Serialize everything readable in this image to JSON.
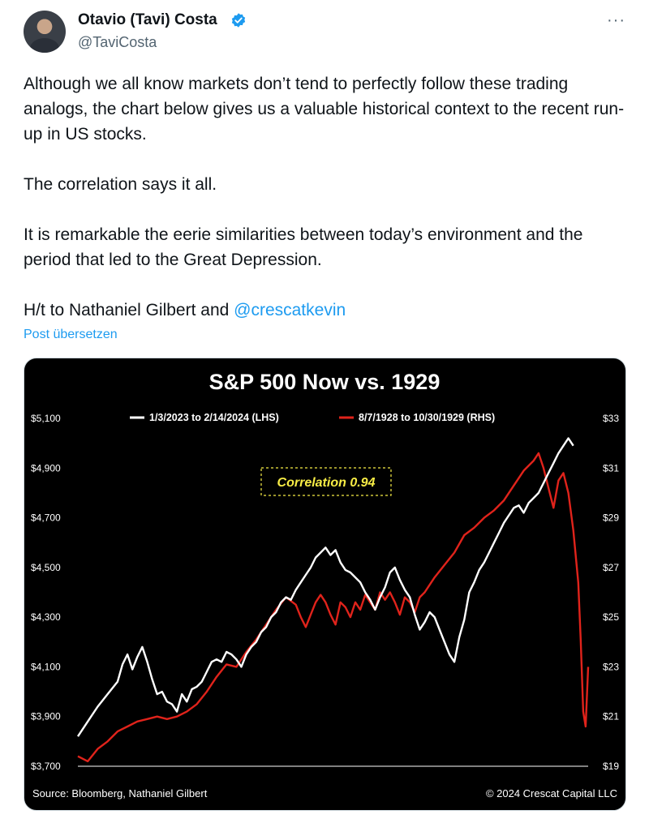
{
  "post": {
    "author_name": "Otavio (Tavi) Costa",
    "handle": "@TaviCosta",
    "more_icon": "more-icon",
    "verified_color": "#1d9bf0",
    "paragraphs": [
      "Although we all know markets don’t tend to perfectly follow these trading analogs, the chart below gives us a valuable historical context to the recent run-up in US stocks.",
      "The correlation says it all.",
      "It is remarkable the eerie similarities between today’s environment and the period that led to the Great Depression."
    ],
    "ht_prefix": "H/t to Nathaniel Gilbert and ",
    "ht_link": "@crescatkevin",
    "translate_label": "Post übersetzen"
  },
  "chart_data": {
    "type": "line",
    "title": "S&P 500 Now vs. 1929",
    "annotation": "Correlation 0.94",
    "source": "Source: Bloomberg, Nathaniel Gilbert",
    "copyright": "© 2024 Crescat Capital LLC",
    "left_axis": {
      "ticks": [
        "$5,100",
        "$4,900",
        "$4,700",
        "$4,500",
        "$4,300",
        "$4,100",
        "$3,900",
        "$3,700"
      ],
      "range": [
        3700,
        5100
      ]
    },
    "right_axis": {
      "ticks": [
        "$33",
        "$31",
        "$29",
        "$27",
        "$25",
        "$23",
        "$21",
        "$19"
      ],
      "range": [
        19,
        33
      ]
    },
    "legend_position": "top",
    "series": [
      {
        "name": "1/3/2023 to 2/14/2024 (LHS)",
        "color": "#ffffff",
        "axis": "left",
        "points": [
          [
            0,
            3820
          ],
          [
            2,
            3880
          ],
          [
            4,
            3940
          ],
          [
            6,
            3990
          ],
          [
            8,
            4040
          ],
          [
            9,
            4110
          ],
          [
            10,
            4150
          ],
          [
            11,
            4090
          ],
          [
            12,
            4140
          ],
          [
            13,
            4180
          ],
          [
            14,
            4120
          ],
          [
            15,
            4050
          ],
          [
            16,
            3990
          ],
          [
            17,
            4000
          ],
          [
            18,
            3960
          ],
          [
            19,
            3950
          ],
          [
            20,
            3920
          ],
          [
            21,
            3990
          ],
          [
            22,
            3960
          ],
          [
            23,
            4010
          ],
          [
            24,
            4020
          ],
          [
            25,
            4040
          ],
          [
            26,
            4080
          ],
          [
            27,
            4120
          ],
          [
            28,
            4130
          ],
          [
            29,
            4120
          ],
          [
            30,
            4160
          ],
          [
            31,
            4150
          ],
          [
            32,
            4130
          ],
          [
            33,
            4100
          ],
          [
            34,
            4150
          ],
          [
            35,
            4180
          ],
          [
            36,
            4200
          ],
          [
            37,
            4240
          ],
          [
            38,
            4260
          ],
          [
            39,
            4300
          ],
          [
            40,
            4320
          ],
          [
            41,
            4360
          ],
          [
            42,
            4380
          ],
          [
            43,
            4370
          ],
          [
            44,
            4410
          ],
          [
            45,
            4440
          ],
          [
            46,
            4470
          ],
          [
            47,
            4500
          ],
          [
            48,
            4540
          ],
          [
            49,
            4560
          ],
          [
            50,
            4580
          ],
          [
            51,
            4550
          ],
          [
            52,
            4570
          ],
          [
            53,
            4520
          ],
          [
            54,
            4490
          ],
          [
            55,
            4480
          ],
          [
            56,
            4460
          ],
          [
            57,
            4440
          ],
          [
            58,
            4400
          ],
          [
            59,
            4370
          ],
          [
            60,
            4330
          ],
          [
            61,
            4380
          ],
          [
            62,
            4420
          ],
          [
            63,
            4480
          ],
          [
            64,
            4500
          ],
          [
            65,
            4450
          ],
          [
            66,
            4410
          ],
          [
            67,
            4380
          ],
          [
            68,
            4310
          ],
          [
            69,
            4250
          ],
          [
            70,
            4280
          ],
          [
            71,
            4320
          ],
          [
            72,
            4300
          ],
          [
            73,
            4250
          ],
          [
            74,
            4200
          ],
          [
            75,
            4150
          ],
          [
            76,
            4120
          ],
          [
            77,
            4220
          ],
          [
            78,
            4290
          ],
          [
            79,
            4400
          ],
          [
            80,
            4440
          ],
          [
            81,
            4490
          ],
          [
            82,
            4520
          ],
          [
            83,
            4560
          ],
          [
            84,
            4600
          ],
          [
            85,
            4640
          ],
          [
            86,
            4680
          ],
          [
            87,
            4710
          ],
          [
            88,
            4740
          ],
          [
            89,
            4750
          ],
          [
            90,
            4720
          ],
          [
            91,
            4760
          ],
          [
            92,
            4780
          ],
          [
            93,
            4800
          ],
          [
            94,
            4840
          ],
          [
            95,
            4880
          ],
          [
            96,
            4920
          ],
          [
            97,
            4960
          ],
          [
            98,
            4990
          ],
          [
            99,
            5020
          ],
          [
            100,
            4990
          ]
        ]
      },
      {
        "name": "8/7/1928 to 10/30/1929 (RHS)",
        "color": "#e0231b",
        "axis": "right",
        "points": [
          [
            0,
            19.4
          ],
          [
            2,
            19.2
          ],
          [
            4,
            19.7
          ],
          [
            6,
            20.0
          ],
          [
            8,
            20.4
          ],
          [
            10,
            20.6
          ],
          [
            12,
            20.8
          ],
          [
            14,
            20.9
          ],
          [
            16,
            21.0
          ],
          [
            18,
            20.9
          ],
          [
            20,
            21.0
          ],
          [
            22,
            21.2
          ],
          [
            24,
            21.5
          ],
          [
            26,
            22.0
          ],
          [
            28,
            22.6
          ],
          [
            30,
            23.1
          ],
          [
            32,
            23.0
          ],
          [
            34,
            23.6
          ],
          [
            36,
            24.1
          ],
          [
            38,
            24.7
          ],
          [
            40,
            25.3
          ],
          [
            42,
            25.8
          ],
          [
            44,
            25.5
          ],
          [
            45,
            25.0
          ],
          [
            46,
            24.6
          ],
          [
            47,
            25.1
          ],
          [
            48,
            25.6
          ],
          [
            49,
            25.9
          ],
          [
            50,
            25.6
          ],
          [
            51,
            25.1
          ],
          [
            52,
            24.7
          ],
          [
            53,
            25.6
          ],
          [
            54,
            25.4
          ],
          [
            55,
            25.0
          ],
          [
            56,
            25.6
          ],
          [
            57,
            25.3
          ],
          [
            58,
            25.9
          ],
          [
            59,
            25.6
          ],
          [
            60,
            25.3
          ],
          [
            61,
            26.0
          ],
          [
            62,
            25.7
          ],
          [
            63,
            26.0
          ],
          [
            64,
            25.6
          ],
          [
            65,
            25.1
          ],
          [
            66,
            25.8
          ],
          [
            67,
            25.6
          ],
          [
            68,
            25.2
          ],
          [
            69,
            25.8
          ],
          [
            70,
            26.0
          ],
          [
            72,
            26.6
          ],
          [
            74,
            27.1
          ],
          [
            76,
            27.6
          ],
          [
            78,
            28.3
          ],
          [
            80,
            28.6
          ],
          [
            82,
            29.0
          ],
          [
            84,
            29.3
          ],
          [
            86,
            29.7
          ],
          [
            88,
            30.3
          ],
          [
            90,
            30.9
          ],
          [
            92,
            31.3
          ],
          [
            93,
            31.6
          ],
          [
            94,
            31.0
          ],
          [
            95,
            30.2
          ],
          [
            96,
            29.4
          ],
          [
            97,
            30.5
          ],
          [
            98,
            30.8
          ],
          [
            99,
            30.0
          ],
          [
            100,
            28.5
          ],
          [
            101,
            26.4
          ],
          [
            101.5,
            24.1
          ],
          [
            102,
            21.2
          ],
          [
            102.5,
            20.6
          ],
          [
            103,
            23.0
          ]
        ]
      }
    ]
  }
}
